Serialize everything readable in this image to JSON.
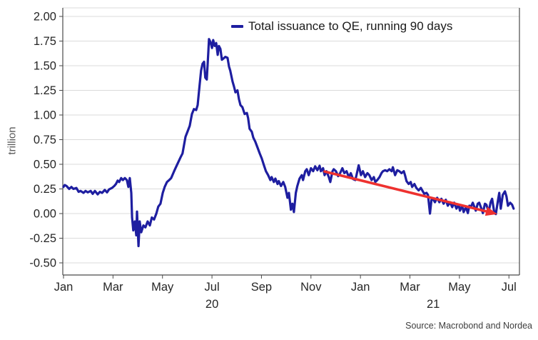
{
  "chart_data": {
    "type": "line",
    "title": "",
    "ylabel": "trillion",
    "xlabel": "",
    "ylim": [
      -0.5,
      2.0
    ],
    "xlim_months": [
      -0.05,
      18.45
    ],
    "x_unit": "months since 2020-01-01",
    "grid": "horizontal",
    "legend_position": "top-center",
    "source": "Source: Macrobond and Nordea",
    "colors": {
      "line": "#1e1ea0",
      "arrow": "#ee312f",
      "grid": "#dbdbdb",
      "axis": "#4a4a4a",
      "tick_text": "#262626",
      "axis_title_text": "#595959",
      "source_text": "#3d3d3d",
      "background": "#ffffff"
    },
    "y_ticks": [
      {
        "label": "2.00",
        "value": 2.0
      },
      {
        "label": "1.75",
        "value": 1.75
      },
      {
        "label": "1.50",
        "value": 1.5
      },
      {
        "label": "1.25",
        "value": 1.25
      },
      {
        "label": "1.00",
        "value": 1.0
      },
      {
        "label": "0.75",
        "value": 0.75
      },
      {
        "label": "0.50",
        "value": 0.5
      },
      {
        "label": "0.25",
        "value": 0.25
      },
      {
        "label": "0.00",
        "value": 0.0
      },
      {
        "label": "-0.25",
        "value": -0.25
      },
      {
        "label": "-0.50",
        "value": -0.5
      }
    ],
    "x_ticks": [
      {
        "label": "Jan",
        "month": 0
      },
      {
        "label": "Mar",
        "month": 2
      },
      {
        "label": "May",
        "month": 4
      },
      {
        "label": "Jul",
        "month": 6
      },
      {
        "label": "Sep",
        "month": 8
      },
      {
        "label": "Nov",
        "month": 10
      },
      {
        "label": "Jan",
        "month": 12
      },
      {
        "label": "Mar",
        "month": 14
      },
      {
        "label": "May",
        "month": 16
      },
      {
        "label": "Jul",
        "month": 18
      }
    ],
    "year_labels": [
      {
        "label": "20",
        "month": 6
      },
      {
        "label": "21",
        "month": 14.94
      }
    ],
    "series": [
      {
        "name": "Total issuance to QE, running 90 days",
        "color": "#1e1ea0",
        "points": [
          [
            0.0,
            0.27
          ],
          [
            0.05,
            0.29
          ],
          [
            0.12,
            0.28
          ],
          [
            0.23,
            0.25
          ],
          [
            0.32,
            0.27
          ],
          [
            0.4,
            0.25
          ],
          [
            0.52,
            0.26
          ],
          [
            0.61,
            0.22
          ],
          [
            0.69,
            0.23
          ],
          [
            0.81,
            0.21
          ],
          [
            0.89,
            0.23
          ],
          [
            0.98,
            0.215
          ],
          [
            1.1,
            0.23
          ],
          [
            1.18,
            0.2
          ],
          [
            1.27,
            0.23
          ],
          [
            1.38,
            0.195
          ],
          [
            1.47,
            0.22
          ],
          [
            1.56,
            0.21
          ],
          [
            1.67,
            0.24
          ],
          [
            1.76,
            0.215
          ],
          [
            1.84,
            0.245
          ],
          [
            1.96,
            0.26
          ],
          [
            2.05,
            0.28
          ],
          [
            2.12,
            0.3
          ],
          [
            2.19,
            0.335
          ],
          [
            2.25,
            0.32
          ],
          [
            2.33,
            0.36
          ],
          [
            2.4,
            0.34
          ],
          [
            2.48,
            0.36
          ],
          [
            2.56,
            0.34
          ],
          [
            2.62,
            0.27
          ],
          [
            2.68,
            0.36
          ],
          [
            2.74,
            0.21
          ],
          [
            2.77,
            -0.04
          ],
          [
            2.82,
            -0.17
          ],
          [
            2.88,
            -0.08
          ],
          [
            2.94,
            -0.22
          ],
          [
            2.97,
            0.02
          ],
          [
            3.03,
            -0.33
          ],
          [
            3.08,
            -0.08
          ],
          [
            3.14,
            -0.19
          ],
          [
            3.23,
            -0.12
          ],
          [
            3.31,
            -0.14
          ],
          [
            3.4,
            -0.08
          ],
          [
            3.49,
            -0.12
          ],
          [
            3.57,
            -0.04
          ],
          [
            3.66,
            -0.06
          ],
          [
            3.75,
            0.0
          ],
          [
            3.83,
            0.07
          ],
          [
            3.92,
            0.1
          ],
          [
            4.01,
            0.21
          ],
          [
            4.09,
            0.27
          ],
          [
            4.18,
            0.32
          ],
          [
            4.27,
            0.34
          ],
          [
            4.35,
            0.36
          ],
          [
            4.47,
            0.43
          ],
          [
            4.58,
            0.49
          ],
          [
            4.73,
            0.57
          ],
          [
            4.81,
            0.61
          ],
          [
            4.93,
            0.78
          ],
          [
            5.01,
            0.83
          ],
          [
            5.1,
            0.89
          ],
          [
            5.19,
            1.01
          ],
          [
            5.27,
            1.06
          ],
          [
            5.36,
            1.05
          ],
          [
            5.42,
            1.1
          ],
          [
            5.5,
            1.3
          ],
          [
            5.56,
            1.45
          ],
          [
            5.62,
            1.52
          ],
          [
            5.68,
            1.54
          ],
          [
            5.73,
            1.38
          ],
          [
            5.79,
            1.36
          ],
          [
            5.85,
            1.63
          ],
          [
            5.88,
            1.77
          ],
          [
            5.94,
            1.74
          ],
          [
            6.0,
            1.68
          ],
          [
            6.05,
            1.76
          ],
          [
            6.11,
            1.7
          ],
          [
            6.17,
            1.73
          ],
          [
            6.23,
            1.61
          ],
          [
            6.28,
            1.7
          ],
          [
            6.34,
            1.67
          ],
          [
            6.4,
            1.56
          ],
          [
            6.45,
            1.57
          ],
          [
            6.54,
            1.59
          ],
          [
            6.63,
            1.58
          ],
          [
            6.69,
            1.49
          ],
          [
            6.74,
            1.45
          ],
          [
            6.83,
            1.34
          ],
          [
            6.89,
            1.29
          ],
          [
            6.95,
            1.23
          ],
          [
            7.03,
            1.25
          ],
          [
            7.09,
            1.16
          ],
          [
            7.15,
            1.1
          ],
          [
            7.23,
            1.08
          ],
          [
            7.32,
            1.01
          ],
          [
            7.41,
            1.02
          ],
          [
            7.46,
            0.97
          ],
          [
            7.52,
            0.86
          ],
          [
            7.61,
            0.83
          ],
          [
            7.67,
            0.77
          ],
          [
            7.75,
            0.73
          ],
          [
            7.84,
            0.67
          ],
          [
            7.93,
            0.61
          ],
          [
            8.01,
            0.56
          ],
          [
            8.1,
            0.49
          ],
          [
            8.18,
            0.43
          ],
          [
            8.27,
            0.39
          ],
          [
            8.36,
            0.34
          ],
          [
            8.41,
            0.37
          ],
          [
            8.5,
            0.32
          ],
          [
            8.56,
            0.355
          ],
          [
            8.65,
            0.3
          ],
          [
            8.7,
            0.33
          ],
          [
            8.79,
            0.28
          ],
          [
            8.88,
            0.32
          ],
          [
            8.96,
            0.27
          ],
          [
            9.05,
            0.16
          ],
          [
            9.11,
            0.21
          ],
          [
            9.19,
            0.04
          ],
          [
            9.25,
            0.1
          ],
          [
            9.31,
            0.015
          ],
          [
            9.39,
            0.21
          ],
          [
            9.45,
            0.28
          ],
          [
            9.54,
            0.355
          ],
          [
            9.63,
            0.39
          ],
          [
            9.68,
            0.34
          ],
          [
            9.77,
            0.43
          ],
          [
            9.83,
            0.45
          ],
          [
            9.91,
            0.39
          ],
          [
            10.0,
            0.46
          ],
          [
            10.09,
            0.43
          ],
          [
            10.17,
            0.48
          ],
          [
            10.26,
            0.44
          ],
          [
            10.35,
            0.485
          ],
          [
            10.4,
            0.43
          ],
          [
            10.49,
            0.46
          ],
          [
            10.55,
            0.39
          ],
          [
            10.63,
            0.43
          ],
          [
            10.72,
            0.37
          ],
          [
            10.78,
            0.32
          ],
          [
            10.87,
            0.43
          ],
          [
            10.92,
            0.45
          ],
          [
            11.01,
            0.43
          ],
          [
            11.1,
            0.38
          ],
          [
            11.18,
            0.41
          ],
          [
            11.27,
            0.46
          ],
          [
            11.35,
            0.41
          ],
          [
            11.44,
            0.43
          ],
          [
            11.53,
            0.37
          ],
          [
            11.61,
            0.41
          ],
          [
            11.7,
            0.35
          ],
          [
            11.79,
            0.34
          ],
          [
            11.84,
            0.39
          ],
          [
            11.93,
            0.49
          ],
          [
            12.02,
            0.39
          ],
          [
            12.1,
            0.43
          ],
          [
            12.19,
            0.37
          ],
          [
            12.28,
            0.41
          ],
          [
            12.36,
            0.39
          ],
          [
            12.45,
            0.34
          ],
          [
            12.54,
            0.37
          ],
          [
            12.6,
            0.32
          ],
          [
            12.68,
            0.34
          ],
          [
            12.77,
            0.37
          ],
          [
            12.85,
            0.41
          ],
          [
            12.91,
            0.43
          ],
          [
            13.0,
            0.44
          ],
          [
            13.08,
            0.43
          ],
          [
            13.17,
            0.45
          ],
          [
            13.26,
            0.43
          ],
          [
            13.31,
            0.47
          ],
          [
            13.4,
            0.39
          ],
          [
            13.49,
            0.44
          ],
          [
            13.57,
            0.43
          ],
          [
            13.66,
            0.41
          ],
          [
            13.75,
            0.43
          ],
          [
            13.8,
            0.39
          ],
          [
            13.86,
            0.33
          ],
          [
            13.95,
            0.3
          ],
          [
            14.03,
            0.32
          ],
          [
            14.09,
            0.27
          ],
          [
            14.18,
            0.3
          ],
          [
            14.26,
            0.26
          ],
          [
            14.35,
            0.235
          ],
          [
            14.44,
            0.26
          ],
          [
            14.52,
            0.225
          ],
          [
            14.58,
            0.2
          ],
          [
            14.67,
            0.21
          ],
          [
            14.73,
            0.19
          ],
          [
            14.81,
            0.0
          ],
          [
            14.87,
            0.14
          ],
          [
            14.93,
            0.15
          ],
          [
            15.01,
            0.115
          ],
          [
            15.1,
            0.16
          ],
          [
            15.19,
            0.115
          ],
          [
            15.27,
            0.15
          ],
          [
            15.36,
            0.1
          ],
          [
            15.45,
            0.14
          ],
          [
            15.53,
            0.08
          ],
          [
            15.62,
            0.115
          ],
          [
            15.71,
            0.065
          ],
          [
            15.79,
            0.11
          ],
          [
            15.88,
            0.05
          ],
          [
            15.97,
            0.09
          ],
          [
            16.02,
            0.03
          ],
          [
            16.11,
            0.08
          ],
          [
            16.17,
            0.015
          ],
          [
            16.26,
            0.065
          ],
          [
            16.34,
            0.005
          ],
          [
            16.4,
            0.08
          ],
          [
            16.46,
            0.065
          ],
          [
            16.54,
            0.11
          ],
          [
            16.66,
            0.03
          ],
          [
            16.74,
            0.1
          ],
          [
            16.8,
            0.11
          ],
          [
            16.89,
            0.05
          ],
          [
            16.95,
            0.005
          ],
          [
            17.03,
            0.1
          ],
          [
            17.09,
            0.09
          ],
          [
            17.18,
            0.015
          ],
          [
            17.26,
            0.115
          ],
          [
            17.32,
            0.15
          ],
          [
            17.41,
            0.005
          ],
          [
            17.47,
            -0.005
          ],
          [
            17.55,
            0.12
          ],
          [
            17.61,
            0.21
          ],
          [
            17.67,
            0.05
          ],
          [
            17.75,
            0.19
          ],
          [
            17.84,
            0.225
          ],
          [
            17.9,
            0.175
          ],
          [
            17.96,
            0.08
          ],
          [
            18.05,
            0.11
          ],
          [
            18.13,
            0.09
          ],
          [
            18.19,
            0.05
          ]
        ]
      }
    ],
    "annotations": [
      {
        "type": "arrow",
        "color": "#ee312f",
        "from_month": 10.55,
        "from_value": 0.427,
        "to_month": 17.53,
        "to_value": -0.005
      }
    ]
  }
}
